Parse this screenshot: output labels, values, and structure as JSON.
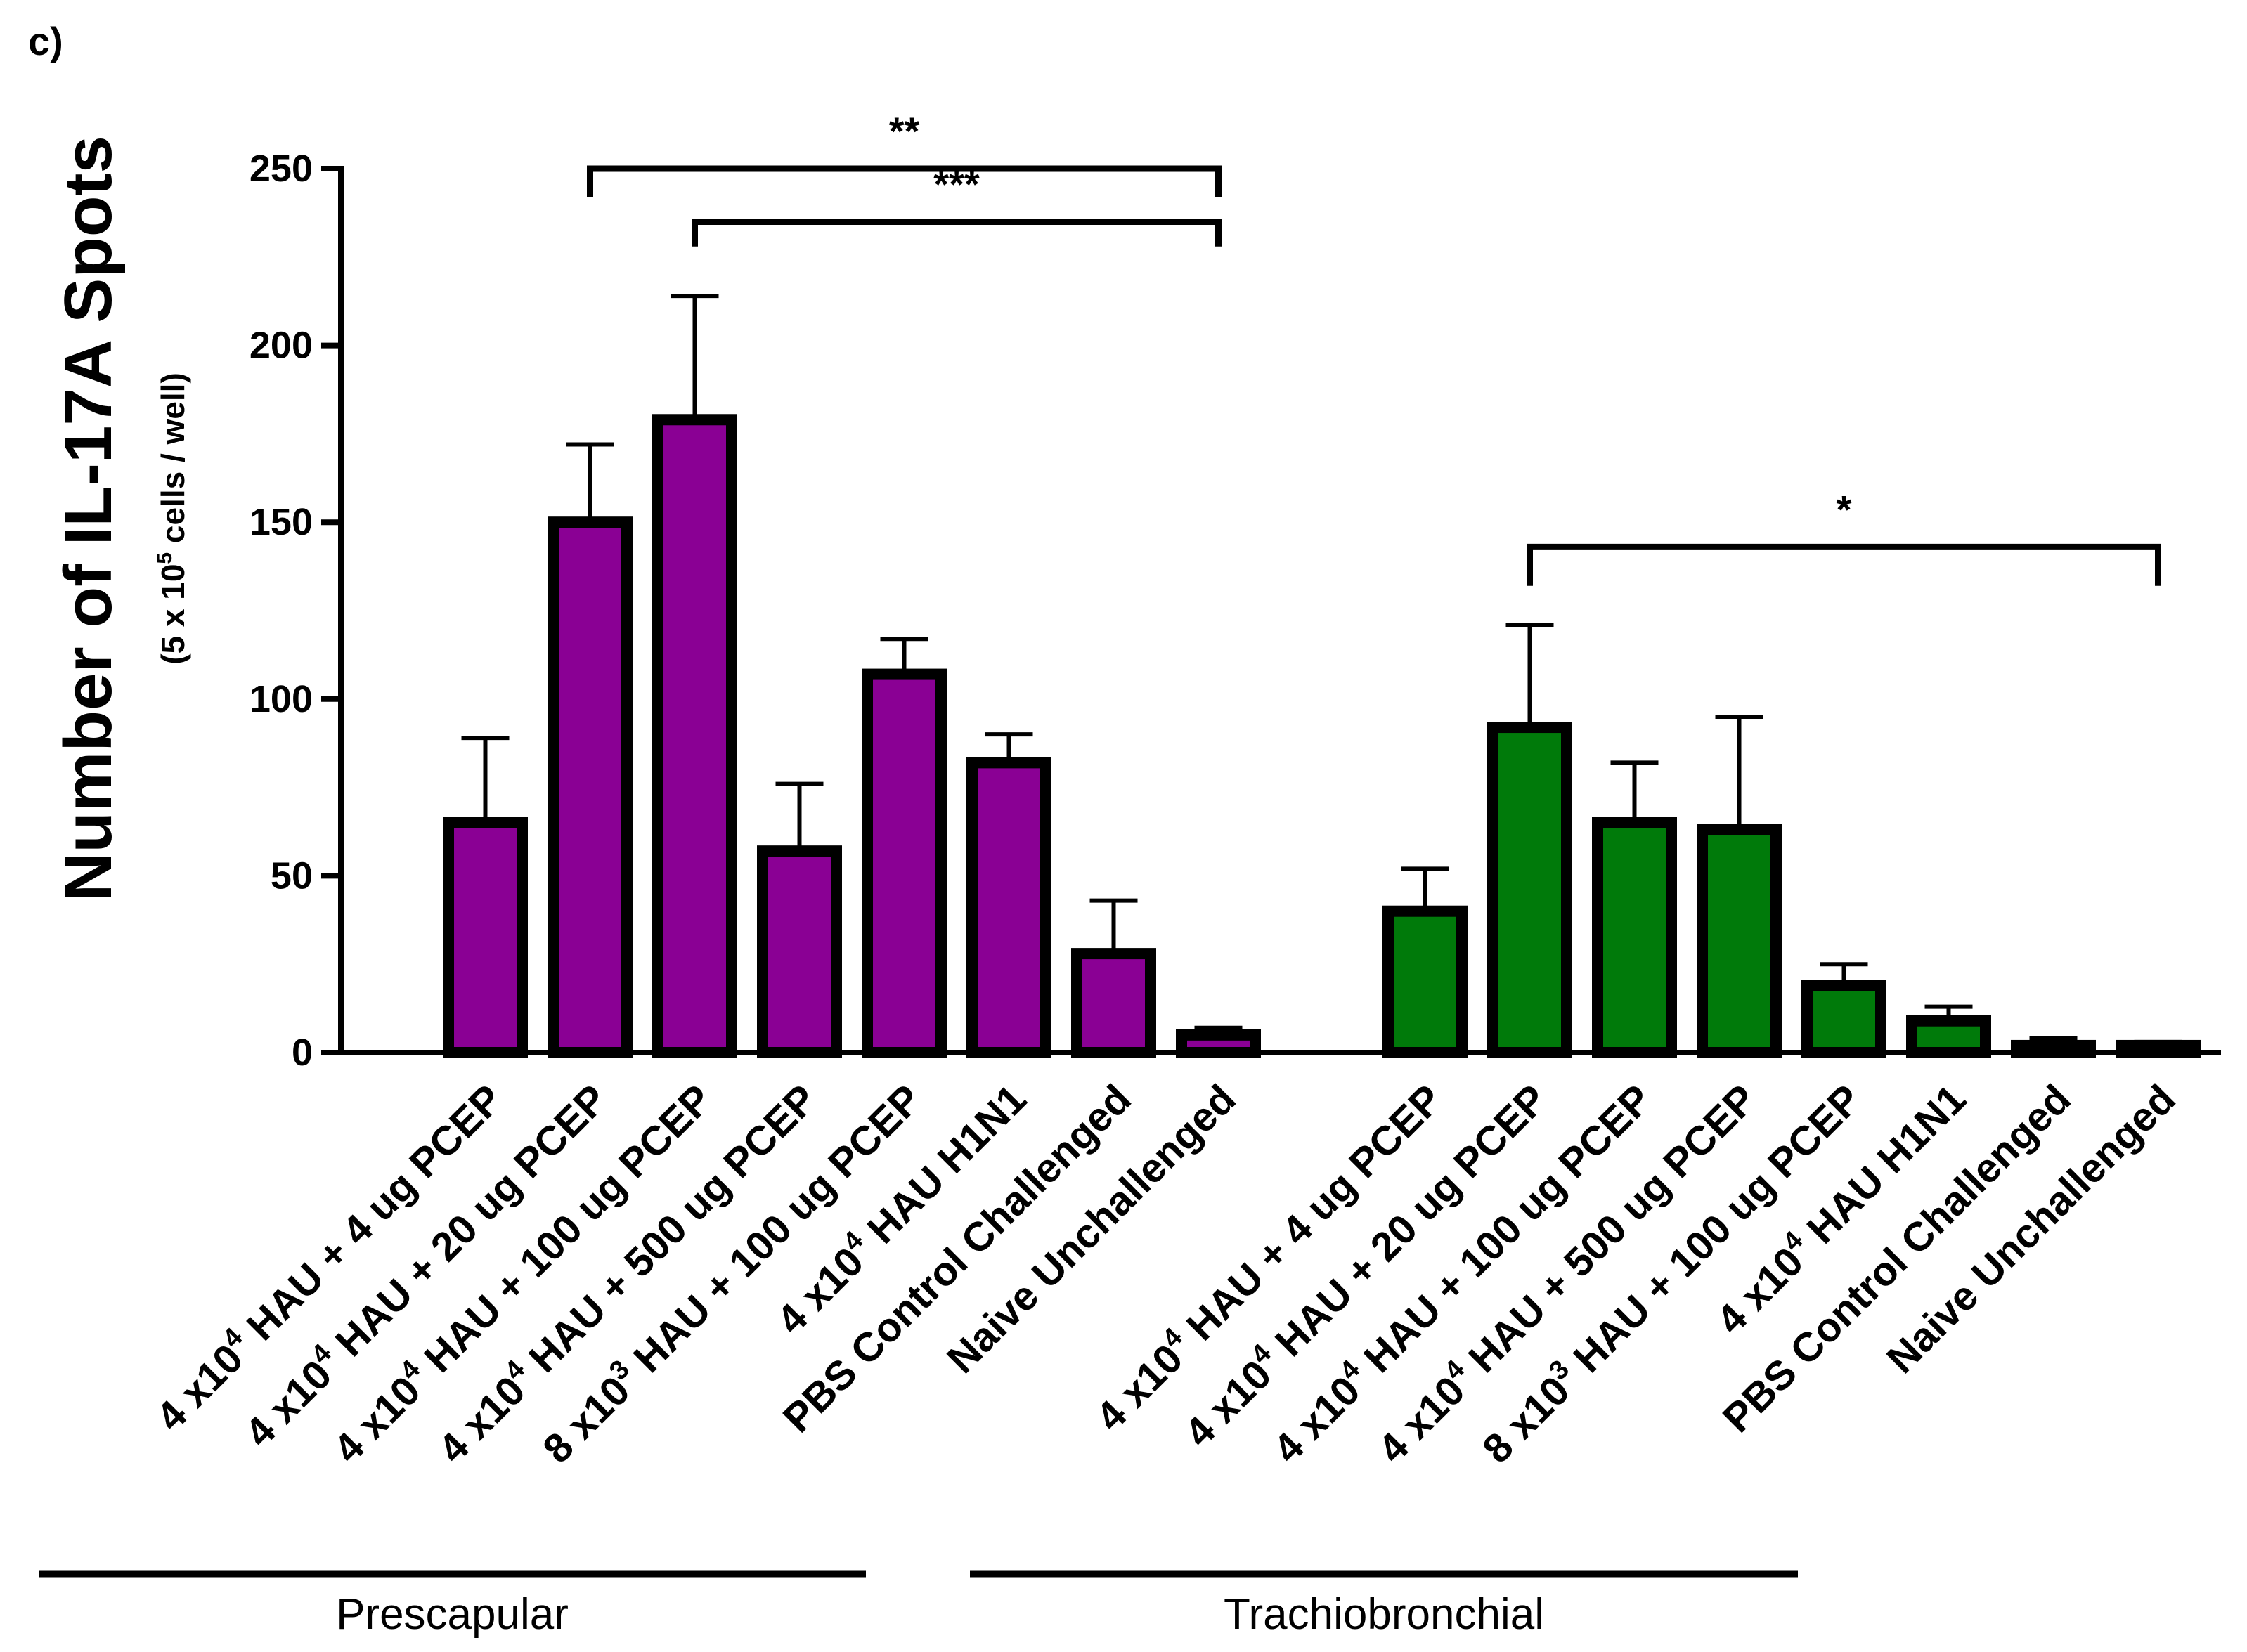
{
  "panel_label": "c)",
  "colors": {
    "prescapular": "#8a0094",
    "trachiobronchial": "#007a0a",
    "outline": "#000000"
  },
  "chart_data": {
    "type": "bar",
    "title": "",
    "xlabel": "",
    "ylabel": "Number of IL-17A Spots",
    "ylabel_sub": {
      "prefix": "(5 x 10",
      "exponent": "5",
      "suffix": " cells / well)"
    },
    "ylim": [
      0,
      250
    ],
    "yticks": [
      0,
      50,
      100,
      150,
      200,
      250
    ],
    "groups": [
      {
        "name": "Prescapular",
        "color_key": "prescapular",
        "bars": [
          {
            "label": {
              "base": "4 x10",
              "exp": "4",
              "rest": " HAU + 4 ug PCEP"
            },
            "value": 65,
            "error": 24
          },
          {
            "label": {
              "base": "4 x10",
              "exp": "4",
              "rest": " HAU + 20 ug PCEP"
            },
            "value": 150,
            "error": 22
          },
          {
            "label": {
              "base": "4 x10",
              "exp": "4",
              "rest": " HAU + 100 ug PCEP"
            },
            "value": 179,
            "error": 35
          },
          {
            "label": {
              "base": "4 x10",
              "exp": "4",
              "rest": " HAU + 500 ug PCEP"
            },
            "value": 57,
            "error": 19
          },
          {
            "label": {
              "base": "8 x10",
              "exp": "3",
              "rest": " HAU + 100 ug PCEP"
            },
            "value": 107,
            "error": 10
          },
          {
            "label": {
              "base": "4 x10",
              "exp": "4",
              "rest": " HAU H1N1"
            },
            "value": 82,
            "error": 8
          },
          {
            "label": {
              "base": "PBS Control Challenged",
              "exp": "",
              "rest": ""
            },
            "value": 28,
            "error": 15
          },
          {
            "label": {
              "base": "Naive Unchallenged",
              "exp": "",
              "rest": ""
            },
            "value": 5,
            "error": 2
          }
        ]
      },
      {
        "name": "Trachiobronchial",
        "color_key": "trachiobronchial",
        "bars": [
          {
            "label": {
              "base": "4 x10",
              "exp": "4",
              "rest": " HAU + 4 ug PCEP"
            },
            "value": 40,
            "error": 12
          },
          {
            "label": {
              "base": "4 x10",
              "exp": "4",
              "rest": " HAU + 20 ug PCEP"
            },
            "value": 92,
            "error": 29
          },
          {
            "label": {
              "base": "4 x10",
              "exp": "4",
              "rest": " HAU + 100 ug PCEP"
            },
            "value": 65,
            "error": 17
          },
          {
            "label": {
              "base": "4 x10",
              "exp": "4",
              "rest": " HAU + 500 ug PCEP"
            },
            "value": 63,
            "error": 32
          },
          {
            "label": {
              "base": "8 x10",
              "exp": "3",
              "rest": " HAU + 100 ug PCEP"
            },
            "value": 19,
            "error": 6
          },
          {
            "label": {
              "base": "4 x10",
              "exp": "4",
              "rest": " HAU H1N1"
            },
            "value": 9,
            "error": 4
          },
          {
            "label": {
              "base": "PBS Control Challenged",
              "exp": "",
              "rest": ""
            },
            "value": 2,
            "error": 2
          },
          {
            "label": {
              "base": "Naive Unchallenged",
              "exp": "",
              "rest": ""
            },
            "value": 2,
            "error": 1
          }
        ]
      }
    ],
    "significance": [
      {
        "label": "**",
        "from": {
          "group": 0,
          "bar": 1
        },
        "to": {
          "group": 0,
          "bar": 7
        },
        "level": 250,
        "tick_level": 242
      },
      {
        "label": "***",
        "from": {
          "group": 0,
          "bar": 2
        },
        "to": {
          "group": 0,
          "bar": 7
        },
        "level": 235,
        "tick_level": 228
      },
      {
        "label": "*",
        "from": {
          "group": 1,
          "bar": 1
        },
        "to": {
          "group": 1,
          "bar": 7
        },
        "level": 143,
        "tick_level": 132
      }
    ]
  }
}
